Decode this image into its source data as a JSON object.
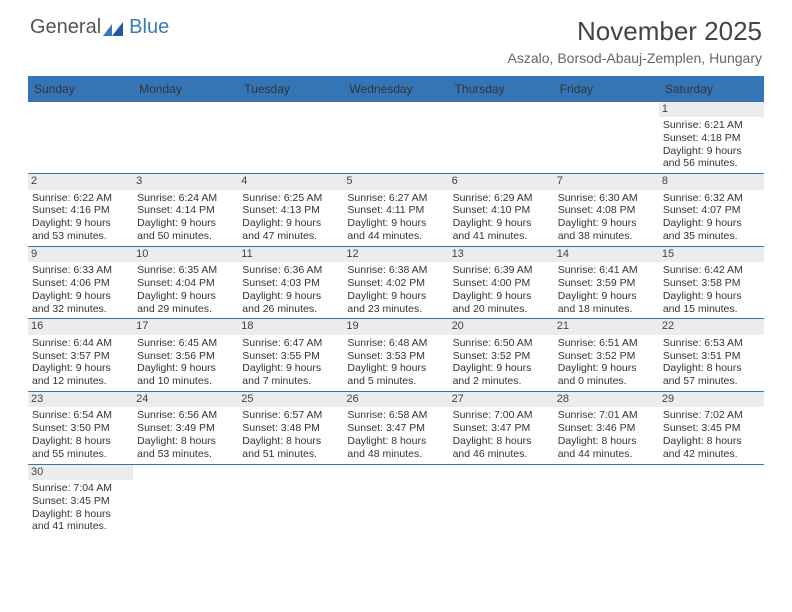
{
  "logo": {
    "word1": "General",
    "word2": "Blue"
  },
  "title": {
    "month": "November 2025",
    "location": "Aszalo, Borsod-Abauj-Zemplen, Hungary"
  },
  "day_headers": [
    "Sunday",
    "Monday",
    "Tuesday",
    "Wednesday",
    "Thursday",
    "Friday",
    "Saturday"
  ],
  "colors": {
    "header_bg": "#3574b5",
    "header_text": "#ffffff",
    "rule": "#3574b5",
    "daynum_bg": "#ececec",
    "text": "#343434"
  },
  "weeks": [
    [
      null,
      null,
      null,
      null,
      null,
      null,
      {
        "n": "1",
        "sunrise": "Sunrise: 6:21 AM",
        "sunset": "Sunset: 4:18 PM",
        "day": "Daylight: 9 hours and 56 minutes."
      }
    ],
    [
      {
        "n": "2",
        "sunrise": "Sunrise: 6:22 AM",
        "sunset": "Sunset: 4:16 PM",
        "day": "Daylight: 9 hours and 53 minutes."
      },
      {
        "n": "3",
        "sunrise": "Sunrise: 6:24 AM",
        "sunset": "Sunset: 4:14 PM",
        "day": "Daylight: 9 hours and 50 minutes."
      },
      {
        "n": "4",
        "sunrise": "Sunrise: 6:25 AM",
        "sunset": "Sunset: 4:13 PM",
        "day": "Daylight: 9 hours and 47 minutes."
      },
      {
        "n": "5",
        "sunrise": "Sunrise: 6:27 AM",
        "sunset": "Sunset: 4:11 PM",
        "day": "Daylight: 9 hours and 44 minutes."
      },
      {
        "n": "6",
        "sunrise": "Sunrise: 6:29 AM",
        "sunset": "Sunset: 4:10 PM",
        "day": "Daylight: 9 hours and 41 minutes."
      },
      {
        "n": "7",
        "sunrise": "Sunrise: 6:30 AM",
        "sunset": "Sunset: 4:08 PM",
        "day": "Daylight: 9 hours and 38 minutes."
      },
      {
        "n": "8",
        "sunrise": "Sunrise: 6:32 AM",
        "sunset": "Sunset: 4:07 PM",
        "day": "Daylight: 9 hours and 35 minutes."
      }
    ],
    [
      {
        "n": "9",
        "sunrise": "Sunrise: 6:33 AM",
        "sunset": "Sunset: 4:06 PM",
        "day": "Daylight: 9 hours and 32 minutes."
      },
      {
        "n": "10",
        "sunrise": "Sunrise: 6:35 AM",
        "sunset": "Sunset: 4:04 PM",
        "day": "Daylight: 9 hours and 29 minutes."
      },
      {
        "n": "11",
        "sunrise": "Sunrise: 6:36 AM",
        "sunset": "Sunset: 4:03 PM",
        "day": "Daylight: 9 hours and 26 minutes."
      },
      {
        "n": "12",
        "sunrise": "Sunrise: 6:38 AM",
        "sunset": "Sunset: 4:02 PM",
        "day": "Daylight: 9 hours and 23 minutes."
      },
      {
        "n": "13",
        "sunrise": "Sunrise: 6:39 AM",
        "sunset": "Sunset: 4:00 PM",
        "day": "Daylight: 9 hours and 20 minutes."
      },
      {
        "n": "14",
        "sunrise": "Sunrise: 6:41 AM",
        "sunset": "Sunset: 3:59 PM",
        "day": "Daylight: 9 hours and 18 minutes."
      },
      {
        "n": "15",
        "sunrise": "Sunrise: 6:42 AM",
        "sunset": "Sunset: 3:58 PM",
        "day": "Daylight: 9 hours and 15 minutes."
      }
    ],
    [
      {
        "n": "16",
        "sunrise": "Sunrise: 6:44 AM",
        "sunset": "Sunset: 3:57 PM",
        "day": "Daylight: 9 hours and 12 minutes."
      },
      {
        "n": "17",
        "sunrise": "Sunrise: 6:45 AM",
        "sunset": "Sunset: 3:56 PM",
        "day": "Daylight: 9 hours and 10 minutes."
      },
      {
        "n": "18",
        "sunrise": "Sunrise: 6:47 AM",
        "sunset": "Sunset: 3:55 PM",
        "day": "Daylight: 9 hours and 7 minutes."
      },
      {
        "n": "19",
        "sunrise": "Sunrise: 6:48 AM",
        "sunset": "Sunset: 3:53 PM",
        "day": "Daylight: 9 hours and 5 minutes."
      },
      {
        "n": "20",
        "sunrise": "Sunrise: 6:50 AM",
        "sunset": "Sunset: 3:52 PM",
        "day": "Daylight: 9 hours and 2 minutes."
      },
      {
        "n": "21",
        "sunrise": "Sunrise: 6:51 AM",
        "sunset": "Sunset: 3:52 PM",
        "day": "Daylight: 9 hours and 0 minutes."
      },
      {
        "n": "22",
        "sunrise": "Sunrise: 6:53 AM",
        "sunset": "Sunset: 3:51 PM",
        "day": "Daylight: 8 hours and 57 minutes."
      }
    ],
    [
      {
        "n": "23",
        "sunrise": "Sunrise: 6:54 AM",
        "sunset": "Sunset: 3:50 PM",
        "day": "Daylight: 8 hours and 55 minutes."
      },
      {
        "n": "24",
        "sunrise": "Sunrise: 6:56 AM",
        "sunset": "Sunset: 3:49 PM",
        "day": "Daylight: 8 hours and 53 minutes."
      },
      {
        "n": "25",
        "sunrise": "Sunrise: 6:57 AM",
        "sunset": "Sunset: 3:48 PM",
        "day": "Daylight: 8 hours and 51 minutes."
      },
      {
        "n": "26",
        "sunrise": "Sunrise: 6:58 AM",
        "sunset": "Sunset: 3:47 PM",
        "day": "Daylight: 8 hours and 48 minutes."
      },
      {
        "n": "27",
        "sunrise": "Sunrise: 7:00 AM",
        "sunset": "Sunset: 3:47 PM",
        "day": "Daylight: 8 hours and 46 minutes."
      },
      {
        "n": "28",
        "sunrise": "Sunrise: 7:01 AM",
        "sunset": "Sunset: 3:46 PM",
        "day": "Daylight: 8 hours and 44 minutes."
      },
      {
        "n": "29",
        "sunrise": "Sunrise: 7:02 AM",
        "sunset": "Sunset: 3:45 PM",
        "day": "Daylight: 8 hours and 42 minutes."
      }
    ],
    [
      {
        "n": "30",
        "sunrise": "Sunrise: 7:04 AM",
        "sunset": "Sunset: 3:45 PM",
        "day": "Daylight: 8 hours and 41 minutes."
      },
      null,
      null,
      null,
      null,
      null,
      null
    ]
  ]
}
